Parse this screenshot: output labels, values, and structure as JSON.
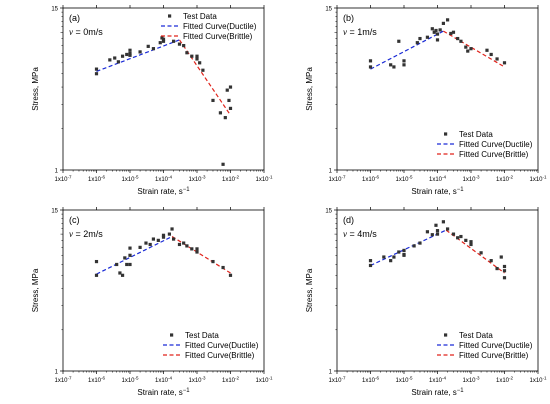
{
  "chart_data": [
    {
      "type": "scatter",
      "panel_label": "(a)",
      "velocity_symbol": "v",
      "velocity_text": " = 0m/s",
      "xlabel": "Strain rate, s",
      "xlabel_sup": "−1",
      "ylabel": "Stress, MPa",
      "xscale": "log",
      "yscale": "log",
      "xlim": [
        1e-07,
        0.1
      ],
      "ylim": [
        1,
        15
      ],
      "xticks": [
        "1x10-7",
        "1x10-6",
        "1x10-5",
        "1x10-4",
        "1x10-3",
        "1x10-2",
        "1x10-1"
      ],
      "yticks": [
        "1",
        "15"
      ],
      "legend_position": "top-center",
      "legend": [
        "Test Data",
        "Fitted Curve(Ductile)",
        "Fitted Curve(Brittle)"
      ],
      "series": [
        {
          "name": "Test Data",
          "kind": "scatter",
          "points": [
            [
              1e-06,
              5.4
            ],
            [
              1e-06,
              5.0
            ],
            [
              2.5e-06,
              6.3
            ],
            [
              3.5e-06,
              6.5
            ],
            [
              4.5e-06,
              6.1
            ],
            [
              6e-06,
              6.7
            ],
            [
              8e-06,
              6.9
            ],
            [
              1e-05,
              7.0
            ],
            [
              1e-05,
              7.4
            ],
            [
              1e-05,
              6.8
            ],
            [
              2e-05,
              7.2
            ],
            [
              3.5e-05,
              7.9
            ],
            [
              5e-05,
              7.6
            ],
            [
              8e-05,
              8.4
            ],
            [
              9e-05,
              9.1
            ],
            [
              0.0001,
              8.6
            ],
            [
              0.0001,
              8.9
            ],
            [
              0.0002,
              8.6
            ],
            [
              0.0003,
              8.2
            ],
            [
              0.0004,
              8.0
            ],
            [
              0.0005,
              7.1
            ],
            [
              0.0007,
              6.7
            ],
            [
              0.001,
              6.7
            ],
            [
              0.001,
              6.4
            ],
            [
              0.0012,
              6.0
            ],
            [
              0.0015,
              5.3
            ],
            [
              0.003,
              3.2
            ],
            [
              0.005,
              2.6
            ],
            [
              0.007,
              2.4
            ],
            [
              0.008,
              3.8
            ],
            [
              0.009,
              3.2
            ],
            [
              0.01,
              2.8
            ],
            [
              0.01,
              4.0
            ],
            [
              0.006,
              1.1
            ]
          ]
        },
        {
          "name": "Fitted Curve(Ductile)",
          "kind": "line",
          "color": "#1a2bd6",
          "points": [
            [
              1e-06,
              5.2
            ],
            [
              0.0003,
              8.8
            ]
          ]
        },
        {
          "name": "Fitted Curve(Brittle)",
          "kind": "line",
          "color": "#e0231b",
          "points": [
            [
              0.0003,
              8.8
            ],
            [
              0.01,
              2.5
            ]
          ]
        }
      ]
    },
    {
      "type": "scatter",
      "panel_label": "(b)",
      "velocity_symbol": "v",
      "velocity_text": " = 1m/s",
      "xlabel": "Strain rate, s",
      "xlabel_sup": "−1",
      "ylabel": "Stress, MPa",
      "xscale": "log",
      "yscale": "log",
      "xlim": [
        1e-07,
        0.1
      ],
      "ylim": [
        1,
        15
      ],
      "xticks": [
        "1x10-7",
        "1x10-6",
        "1x10-5",
        "1x10-4",
        "1x10-3",
        "1x10-2",
        "1x10-1"
      ],
      "yticks": [
        "1",
        "15"
      ],
      "legend_position": "bottom-right",
      "legend": [
        "Test Data",
        "Fitted Curve(Ductile)",
        "Fitted Curve(Brittle)"
      ],
      "series": [
        {
          "name": "Test Data",
          "kind": "scatter",
          "points": [
            [
              1e-06,
              6.2
            ],
            [
              1e-06,
              5.6
            ],
            [
              4e-06,
              5.8
            ],
            [
              5e-06,
              5.6
            ],
            [
              7e-06,
              8.6
            ],
            [
              1e-05,
              5.8
            ],
            [
              1e-05,
              6.2
            ],
            [
              2.5e-05,
              8.4
            ],
            [
              3e-05,
              9.0
            ],
            [
              5e-05,
              9.2
            ],
            [
              7e-05,
              10.6
            ],
            [
              8e-05,
              10.0
            ],
            [
              9e-05,
              10.3
            ],
            [
              0.0001,
              9.7
            ],
            [
              0.0001,
              8.8
            ],
            [
              0.00012,
              10.4
            ],
            [
              0.00015,
              11.6
            ],
            [
              0.0002,
              12.3
            ],
            [
              0.00025,
              9.8
            ],
            [
              0.0003,
              10.0
            ],
            [
              0.0004,
              9.0
            ],
            [
              0.0005,
              8.6
            ],
            [
              0.0007,
              7.8
            ],
            [
              0.0008,
              7.3
            ],
            [
              0.001,
              7.6
            ],
            [
              0.003,
              7.4
            ],
            [
              0.004,
              6.9
            ],
            [
              0.006,
              6.4
            ],
            [
              0.01,
              6.0
            ]
          ]
        },
        {
          "name": "Fitted Curve(Ductile)",
          "kind": "line",
          "color": "#1a2bd6",
          "points": [
            [
              1e-06,
              5.4
            ],
            [
              0.00015,
              10.2
            ]
          ]
        },
        {
          "name": "Fitted Curve(Brittle)",
          "kind": "line",
          "color": "#e0231b",
          "points": [
            [
              0.00015,
              10.2
            ],
            [
              0.01,
              5.6
            ]
          ]
        }
      ]
    },
    {
      "type": "scatter",
      "panel_label": "(c)",
      "velocity_symbol": "v",
      "velocity_text": " = 2m/s",
      "xlabel": "Strain rate, s",
      "xlabel_sup": "−1",
      "ylabel": "Stress, MPa",
      "xscale": "log",
      "yscale": "log",
      "xlim": [
        1e-07,
        0.1
      ],
      "ylim": [
        1,
        15
      ],
      "xticks": [
        "1x10-7",
        "1x10-6",
        "1x10-5",
        "1x10-4",
        "1x10-3",
        "1x10-2",
        "1x10-1"
      ],
      "yticks": [
        "1",
        "15"
      ],
      "legend_position": "bottom-right",
      "legend": [
        "Test Data",
        "Fitted Curve(Ductile)",
        "Fitted Curve(Brittle)"
      ],
      "series": [
        {
          "name": "Test Data",
          "kind": "scatter",
          "points": [
            [
              1e-06,
              6.3
            ],
            [
              1e-06,
              5.0
            ],
            [
              4e-06,
              6.0
            ],
            [
              5e-06,
              5.2
            ],
            [
              6e-06,
              5.0
            ],
            [
              7e-06,
              6.7
            ],
            [
              8e-06,
              6.0
            ],
            [
              1e-05,
              7.9
            ],
            [
              1e-05,
              7.0
            ],
            [
              1e-05,
              6.0
            ],
            [
              2e-05,
              8.0
            ],
            [
              3e-05,
              8.6
            ],
            [
              4e-05,
              8.4
            ],
            [
              5e-05,
              9.2
            ],
            [
              7e-05,
              9.0
            ],
            [
              0.0001,
              9.8
            ],
            [
              0.0001,
              9.5
            ],
            [
              0.00015,
              10.0
            ],
            [
              0.00018,
              10.9
            ],
            [
              0.0002,
              9.2
            ],
            [
              0.0003,
              8.4
            ],
            [
              0.0004,
              8.6
            ],
            [
              0.0005,
              8.2
            ],
            [
              0.0007,
              7.8
            ],
            [
              0.001,
              7.4
            ],
            [
              0.001,
              7.8
            ],
            [
              0.003,
              6.3
            ],
            [
              0.006,
              5.7
            ],
            [
              0.01,
              5.0
            ]
          ]
        },
        {
          "name": "Fitted Curve(Ductile)",
          "kind": "line",
          "color": "#1a2bd6",
          "points": [
            [
              1e-06,
              5.1
            ],
            [
              0.00018,
              9.6
            ]
          ]
        },
        {
          "name": "Fitted Curve(Brittle)",
          "kind": "line",
          "color": "#e0231b",
          "points": [
            [
              0.00018,
              9.6
            ],
            [
              0.01,
              5.2
            ]
          ]
        }
      ]
    },
    {
      "type": "scatter",
      "panel_label": "(d)",
      "velocity_symbol": "v",
      "velocity_text": " = 4m/s",
      "xlabel": "Strain rate, s",
      "xlabel_sup": "−1",
      "ylabel": "Stress, MPa",
      "xscale": "log",
      "yscale": "log",
      "xlim": [
        1e-07,
        0.1
      ],
      "ylim": [
        1,
        15
      ],
      "xticks": [
        "1x10-7",
        "1x10-6",
        "1x10-5",
        "1x10-4",
        "1x10-3",
        "1x10-2",
        "1x10-1"
      ],
      "yticks": [
        "1",
        "15"
      ],
      "legend_position": "bottom-right",
      "legend": [
        "Test Data",
        "Fitted Curve(Ductile)",
        "Fitted Curve(Brittle)"
      ],
      "series": [
        {
          "name": "Test Data",
          "kind": "scatter",
          "points": [
            [
              1e-06,
              6.4
            ],
            [
              1e-06,
              5.9
            ],
            [
              2.5e-06,
              6.8
            ],
            [
              4e-06,
              6.4
            ],
            [
              5e-06,
              6.8
            ],
            [
              7e-06,
              7.4
            ],
            [
              1e-05,
              7.1
            ],
            [
              1e-05,
              7.6
            ],
            [
              1e-05,
              7.0
            ],
            [
              2e-05,
              8.2
            ],
            [
              3e-05,
              8.6
            ],
            [
              5e-05,
              10.4
            ],
            [
              7e-05,
              9.9
            ],
            [
              9e-05,
              11.6
            ],
            [
              0.0001,
              10.6
            ],
            [
              0.0001,
              10.0
            ],
            [
              0.00015,
              12.3
            ],
            [
              0.0002,
              10.9
            ],
            [
              0.0003,
              10.0
            ],
            [
              0.0004,
              9.4
            ],
            [
              0.0005,
              9.6
            ],
            [
              0.0007,
              9.0
            ],
            [
              0.001,
              8.4
            ],
            [
              0.001,
              8.8
            ],
            [
              0.002,
              7.3
            ],
            [
              0.004,
              6.4
            ],
            [
              0.006,
              5.6
            ],
            [
              0.008,
              6.8
            ],
            [
              0.01,
              5.4
            ],
            [
              0.01,
              5.8
            ],
            [
              0.01,
              4.8
            ]
          ]
        },
        {
          "name": "Fitted Curve(Ductile)",
          "kind": "line",
          "color": "#1a2bd6",
          "points": [
            [
              1e-06,
              5.9
            ],
            [
              0.00018,
              10.7
            ]
          ]
        },
        {
          "name": "Fitted Curve(Brittle)",
          "kind": "line",
          "color": "#e0231b",
          "points": [
            [
              0.00018,
              10.7
            ],
            [
              0.01,
              5.2
            ]
          ]
        }
      ]
    }
  ]
}
